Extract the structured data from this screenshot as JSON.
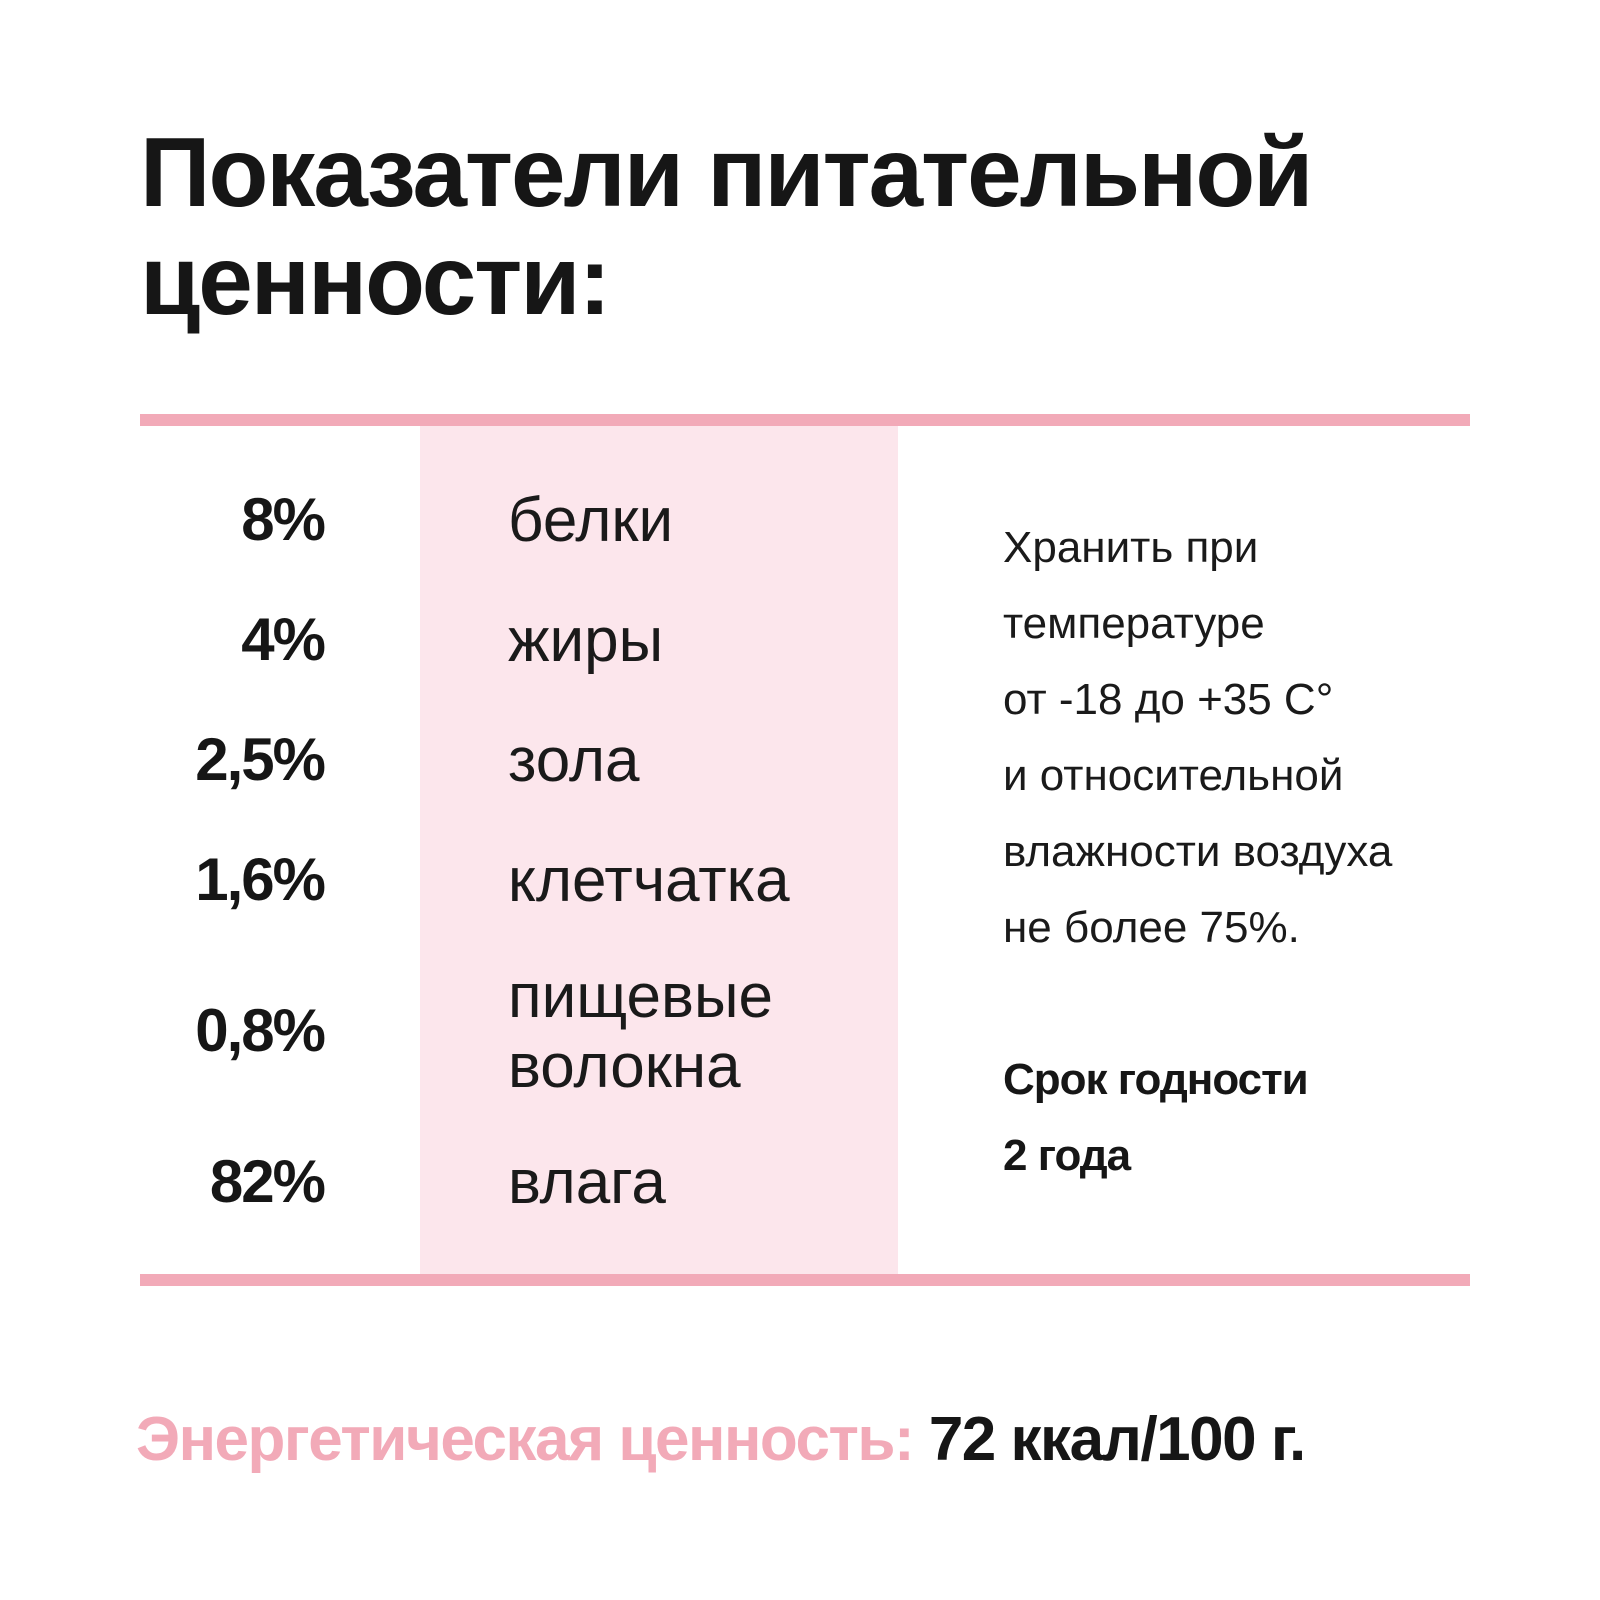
{
  "title": {
    "line1": "Показатели питательной",
    "line2": "ценности:"
  },
  "nutrients": [
    {
      "percent": "8%",
      "name": "белки"
    },
    {
      "percent": "4%",
      "name": "жиры"
    },
    {
      "percent": "2,5%",
      "name": "зола"
    },
    {
      "percent": "1,6%",
      "name": "клетчатка"
    },
    {
      "percent": "0,8%",
      "name_line1": "пищевые",
      "name_line2": "волокна"
    },
    {
      "percent": "82%",
      "name": "влага"
    }
  ],
  "storage": {
    "lines": [
      "Хранить при",
      "температуре",
      "от -18 до +35 С°",
      "и относительной",
      "влажности воздуха",
      "не более 75%."
    ]
  },
  "shelf_life": {
    "line1": "Срок годности",
    "line2": "2 года"
  },
  "energy": {
    "label": "Энергетическая ценность:",
    "value": "72 ккал/100 г."
  },
  "colors": {
    "accent_pink": "#f2aab8",
    "band_pink": "#fce6ec",
    "text_dark": "#161616"
  }
}
